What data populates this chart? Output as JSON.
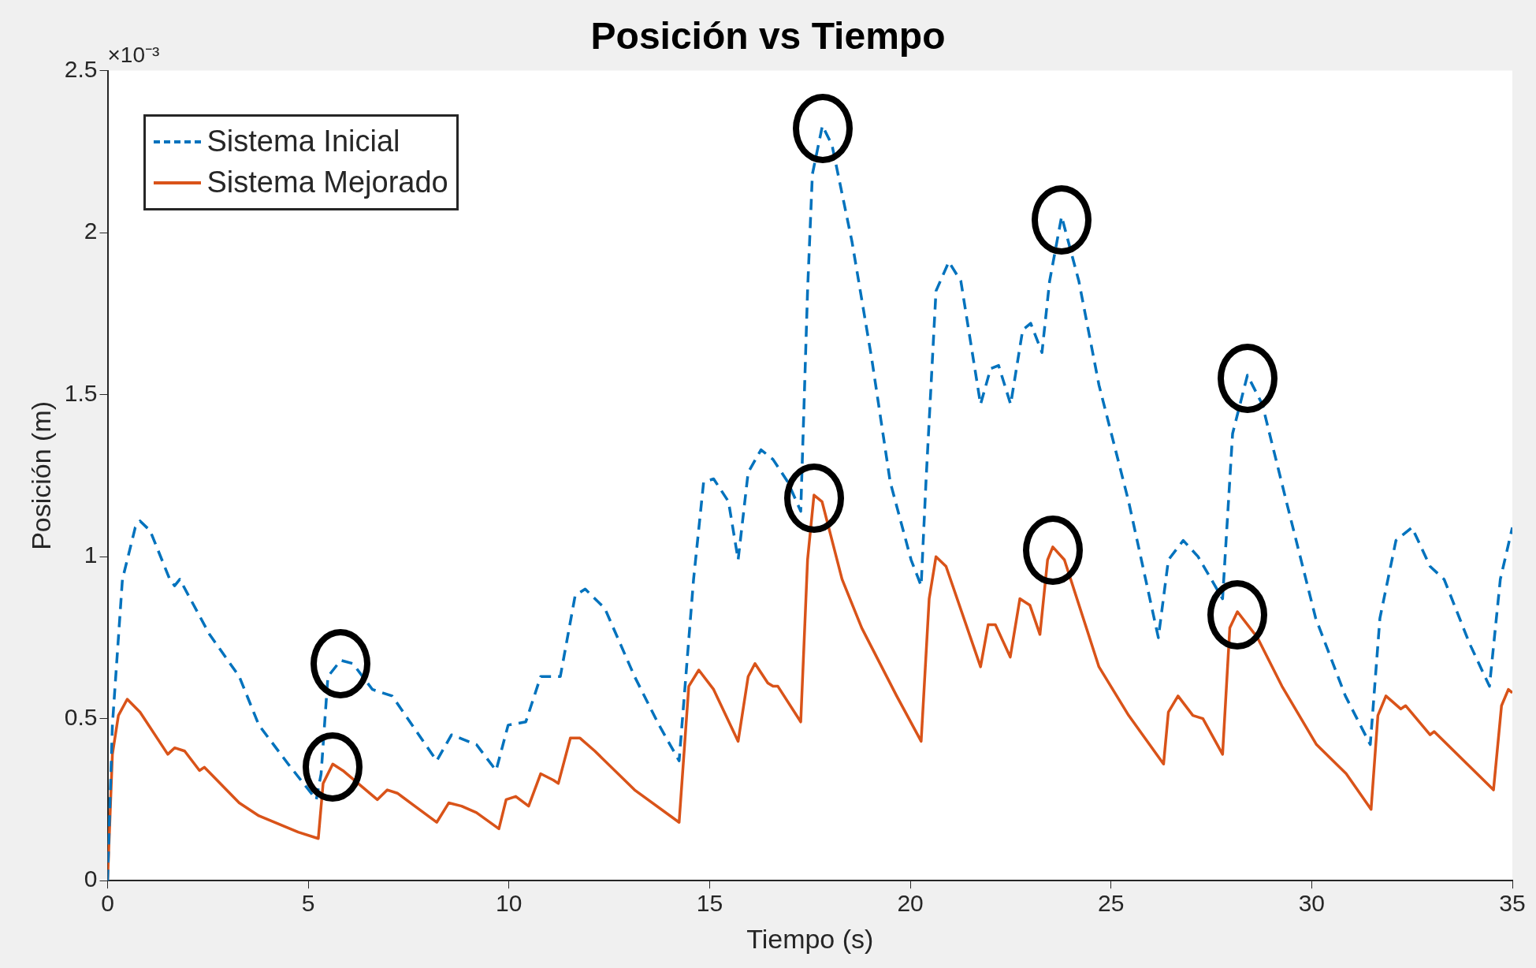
{
  "chart_data": {
    "type": "line",
    "title": "Posición vs Tiempo",
    "xlabel": "Tiempo (s)",
    "ylabel": "Posición (m)",
    "annotations": [
      "×10⁻³"
    ],
    "xlim": [
      0,
      35
    ],
    "xticks": [
      0,
      5,
      10,
      15,
      20,
      25,
      30,
      35
    ],
    "ylim": [
      0,
      2.5
    ],
    "yticks": [
      0,
      0.5,
      1,
      1.5,
      2,
      2.5
    ],
    "grid": false,
    "legend": "top left",
    "marker": "none",
    "series": [
      {
        "name": "Sistema Inicial",
        "color": "#0072bd",
        "line_style": "dashed",
        "x": [
          0,
          0.12,
          0.37,
          0.69,
          0.81,
          1.06,
          1.55,
          1.67,
          1.8,
          2.54,
          3.28,
          3.77,
          4.5,
          5.2,
          5.32,
          5.49,
          5.81,
          6.11,
          6.6,
          7.09,
          8.2,
          8.57,
          9.19,
          9.68,
          9.98,
          10.42,
          10.79,
          11.28,
          11.65,
          11.9,
          12.39,
          13.13,
          13.74,
          14.24,
          14.6,
          14.85,
          15.1,
          15.47,
          15.71,
          15.96,
          16.28,
          16.58,
          16.95,
          17.27,
          17.44,
          17.56,
          17.81,
          18.05,
          18.55,
          19.04,
          19.5,
          20.02,
          20.27,
          20.39,
          20.64,
          20.96,
          21.26,
          21.75,
          22.0,
          22.2,
          22.5,
          22.8,
          23.0,
          23.28,
          23.47,
          23.77,
          24.2,
          24.7,
          25.44,
          26.18,
          26.43,
          26.8,
          27.17,
          27.78,
          28.03,
          28.4,
          28.77,
          29.37,
          30.1,
          30.84,
          31.46,
          31.7,
          32.1,
          32.5,
          32.95,
          33.3,
          33.94,
          34.43,
          34.7,
          35
        ],
        "values": [
          0,
          0.48,
          0.93,
          1.09,
          1.11,
          1.08,
          0.93,
          0.91,
          0.93,
          0.76,
          0.63,
          0.48,
          0.36,
          0.25,
          0.33,
          0.63,
          0.68,
          0.67,
          0.59,
          0.57,
          0.37,
          0.45,
          0.42,
          0.34,
          0.48,
          0.49,
          0.63,
          0.63,
          0.88,
          0.9,
          0.84,
          0.63,
          0.48,
          0.37,
          0.93,
          1.23,
          1.24,
          1.17,
          0.99,
          1.26,
          1.33,
          1.3,
          1.23,
          1.14,
          1.82,
          2.18,
          2.33,
          2.27,
          1.97,
          1.61,
          1.23,
          0.99,
          0.91,
          1.23,
          1.82,
          1.91,
          1.85,
          1.47,
          1.58,
          1.59,
          1.47,
          1.7,
          1.72,
          1.63,
          1.85,
          2.05,
          1.85,
          1.53,
          1.17,
          0.75,
          0.99,
          1.05,
          1.0,
          0.87,
          1.38,
          1.56,
          1.47,
          1.17,
          0.81,
          0.57,
          0.42,
          0.81,
          1.05,
          1.09,
          0.97,
          0.93,
          0.73,
          0.6,
          0.93,
          1.09
        ]
      },
      {
        "name": "Sistema Mejorado",
        "color": "#d95319",
        "line_style": "solid",
        "x": [
          0,
          0.12,
          0.27,
          0.49,
          0.81,
          1.5,
          1.67,
          1.92,
          2.29,
          2.41,
          3.28,
          3.77,
          4.75,
          5.25,
          5.37,
          5.61,
          5.86,
          6.72,
          6.97,
          7.22,
          8.2,
          8.5,
          8.82,
          9.19,
          9.75,
          9.93,
          10.17,
          10.49,
          10.79,
          11.11,
          11.23,
          11.53,
          11.77,
          12.14,
          13.13,
          14.24,
          14.48,
          14.73,
          15.1,
          15.71,
          15.96,
          16.13,
          16.45,
          16.58,
          16.7,
          17.27,
          17.44,
          17.6,
          17.8,
          18.3,
          18.79,
          19.66,
          20.27,
          20.47,
          20.64,
          20.89,
          21.75,
          21.94,
          22.12,
          22.49,
          22.73,
          22.98,
          23.23,
          23.42,
          23.55,
          23.84,
          24.7,
          25.44,
          26.31,
          26.43,
          26.67,
          27.04,
          27.29,
          27.78,
          27.96,
          28.15,
          28.65,
          29.26,
          30.12,
          30.86,
          31.48,
          31.65,
          31.85,
          32.22,
          32.34,
          32.95,
          33.05,
          34.53,
          34.73,
          34.9,
          35
        ],
        "values": [
          0,
          0.39,
          0.51,
          0.56,
          0.52,
          0.39,
          0.41,
          0.4,
          0.34,
          0.35,
          0.24,
          0.2,
          0.15,
          0.13,
          0.3,
          0.36,
          0.34,
          0.25,
          0.28,
          0.27,
          0.18,
          0.24,
          0.23,
          0.21,
          0.16,
          0.25,
          0.26,
          0.23,
          0.33,
          0.31,
          0.3,
          0.44,
          0.44,
          0.4,
          0.28,
          0.18,
          0.6,
          0.65,
          0.59,
          0.43,
          0.63,
          0.67,
          0.61,
          0.6,
          0.6,
          0.49,
          0.99,
          1.19,
          1.17,
          0.93,
          0.78,
          0.57,
          0.43,
          0.87,
          1.0,
          0.97,
          0.66,
          0.79,
          0.79,
          0.69,
          0.87,
          0.85,
          0.76,
          0.99,
          1.03,
          0.99,
          0.66,
          0.51,
          0.36,
          0.52,
          0.57,
          0.51,
          0.5,
          0.39,
          0.78,
          0.83,
          0.75,
          0.6,
          0.42,
          0.33,
          0.22,
          0.51,
          0.57,
          0.53,
          0.54,
          0.45,
          0.46,
          0.28,
          0.54,
          0.59,
          0.58
        ]
      }
    ]
  }
}
